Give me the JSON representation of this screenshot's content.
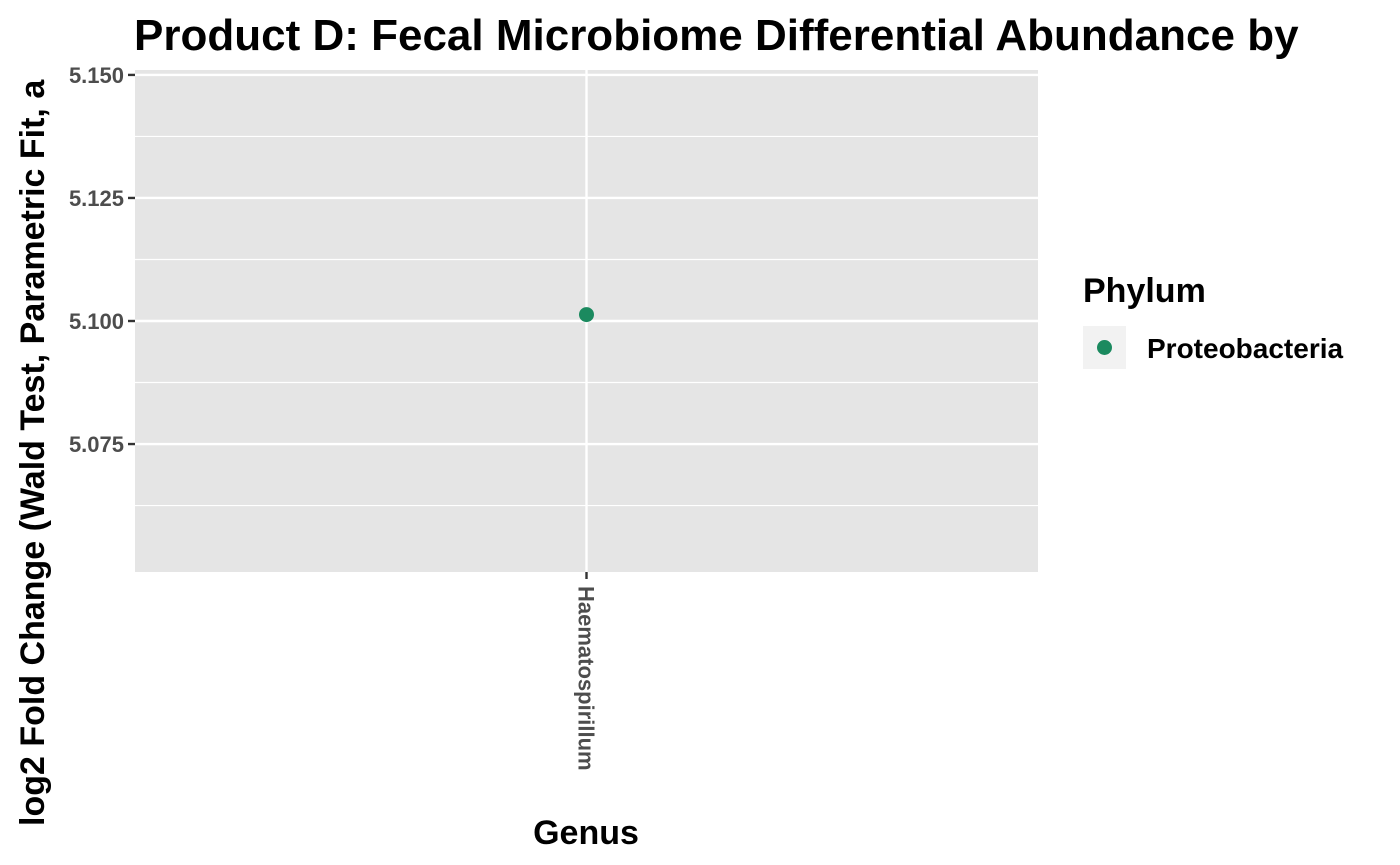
{
  "chart_data": {
    "type": "scatter",
    "title": "Product D: Fecal Microbiome Differential Abundance by",
    "xlabel": "Genus",
    "ylabel": "log2 Fold Change (Wald Test, Parametric Fit, a",
    "categories": [
      "Haematospirillum"
    ],
    "ylim": [
      5.049,
      5.151
    ],
    "yticks": [
      5.075,
      5.1,
      5.125,
      5.15
    ],
    "ytick_labels": [
      "5.075",
      "5.100",
      "5.125",
      "5.150"
    ],
    "grid": true,
    "legend": {
      "title": "Phylum",
      "position": "right",
      "entries": [
        {
          "label": "Proteobacteria",
          "color": "#1b8a5f"
        }
      ]
    },
    "series": [
      {
        "name": "Proteobacteria",
        "color": "#1b8a5f",
        "points": [
          {
            "x": "Haematospirillum",
            "y": 5.1013
          }
        ]
      }
    ]
  }
}
